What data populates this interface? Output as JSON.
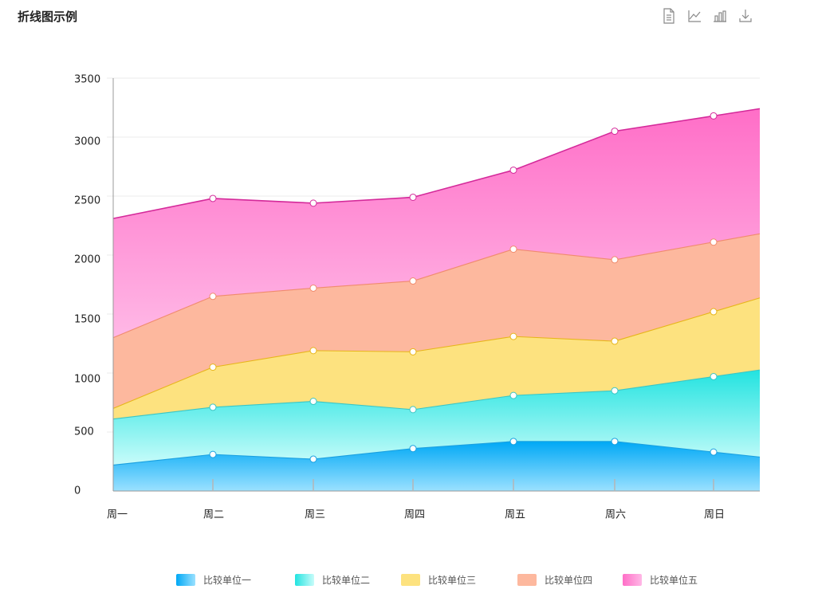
{
  "title": "折线图示例",
  "toolbar": [
    {
      "icon": "data-view-icon"
    },
    {
      "icon": "line-chart-icon"
    },
    {
      "icon": "bar-chart-icon"
    },
    {
      "icon": "download-icon"
    }
  ],
  "chart_data": {
    "type": "area",
    "stacked": true,
    "categories": [
      "周一",
      "周二",
      "周三",
      "周四",
      "周五",
      "周六",
      "周日"
    ],
    "yticks": [
      "0",
      "500",
      "1000",
      "1500",
      "2000",
      "2500",
      "3000",
      "3500"
    ],
    "ylim": [
      0,
      3500
    ],
    "grid": true,
    "legend_position": "bottom",
    "series": [
      {
        "name": "比较单位一",
        "values": [
          220,
          310,
          270,
          360,
          420,
          420,
          330
        ],
        "color_top": "#00a8f5",
        "color_bottom": "#9be1ff",
        "line": "#1aa0e0"
      },
      {
        "name": "比较单位二",
        "values": [
          390,
          400,
          490,
          330,
          390,
          430,
          640
        ],
        "color_top": "#22e3e0",
        "color_bottom": "#c8fcfa",
        "line": "#3cc6c4"
      },
      {
        "name": "比较单位三",
        "values": [
          90,
          340,
          430,
          490,
          500,
          420,
          550
        ],
        "color_top": "#fde27f",
        "color_bottom": "#fde27f",
        "line": "#e7b51a"
      },
      {
        "name": "比较单位四",
        "values": [
          600,
          600,
          530,
          600,
          740,
          690,
          590
        ],
        "color_top": "#fdb89e",
        "color_bottom": "#fdb89e",
        "line": "#f08b6e"
      },
      {
        "name": "比较单位五",
        "values": [
          1010,
          830,
          720,
          710,
          670,
          1090,
          1070
        ],
        "color_top": "#ff6ec7",
        "color_bottom": "#ffb8e6",
        "line": "#d42a9a"
      }
    ]
  }
}
